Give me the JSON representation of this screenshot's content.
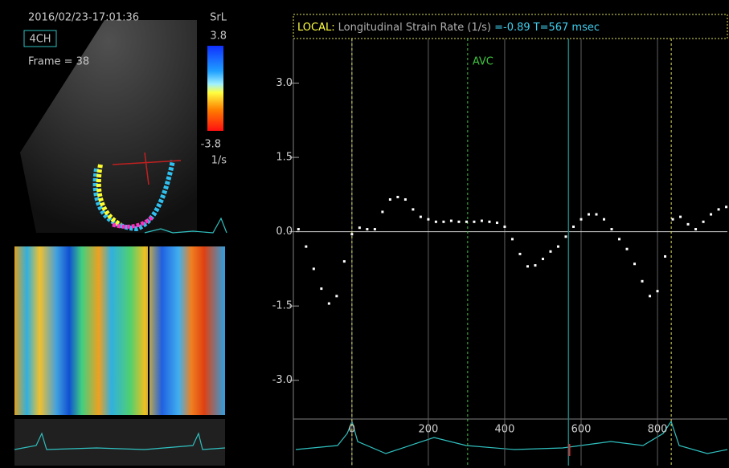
{
  "header": {
    "timestamp": "2016/02/23-17:01:36",
    "view": "4CH",
    "frame": "Frame = 38"
  },
  "colorbar": {
    "title": "SrL",
    "max": 3.8,
    "min": -3.8,
    "unit": "1/s"
  },
  "chart_data": {
    "type": "scatter",
    "local_label": "LOCAL:",
    "title": "Longitudinal Strain Rate (1/s) ",
    "cursor": {
      "value": -0.89,
      "label": "=-0.89"
    },
    "cursor_time": {
      "value": 567,
      "label": "T=567 msec"
    },
    "xlim": [
      -147,
      983
    ],
    "ylim": [
      -3.75,
      3.9
    ],
    "xticks": [
      0,
      200,
      400,
      600,
      800
    ],
    "yticks": [
      {
        "value": 3,
        "label": "3.0"
      },
      {
        "value": 1.5,
        "label": "1.5"
      },
      {
        "value": 0,
        "label": "0.0"
      },
      {
        "value": -1.5,
        "label": "-1.5"
      },
      {
        "value": -3,
        "label": "-3.0"
      }
    ],
    "event_lines": [
      0,
      836
    ],
    "events": [
      {
        "label": "AVC",
        "x": 303,
        "color": "#3ec43e"
      }
    ],
    "series": [
      {
        "color": "#ffffff",
        "x": [
          -140,
          -120,
          -100,
          -80,
          -60,
          -40,
          -20,
          0,
          20,
          40,
          60,
          80,
          100,
          120,
          140,
          160,
          180,
          200,
          220,
          240,
          260,
          280,
          300,
          320,
          340,
          360,
          380,
          400,
          420,
          440,
          460,
          480,
          500,
          520,
          540,
          560,
          580,
          600,
          620,
          640,
          660,
          680,
          700,
          720,
          740,
          760,
          780,
          800,
          820,
          840,
          860,
          880,
          900,
          920,
          940,
          960,
          980
        ],
        "values": [
          0.05,
          -0.3,
          -0.75,
          -1.15,
          -1.45,
          -1.3,
          -0.6,
          -0.05,
          0.08,
          0.05,
          0.05,
          0.4,
          0.65,
          0.7,
          0.65,
          0.45,
          0.3,
          0.25,
          0.2,
          0.2,
          0.22,
          0.2,
          0.2,
          0.2,
          0.22,
          0.2,
          0.18,
          0.1,
          -0.15,
          -0.45,
          -0.7,
          -0.68,
          -0.55,
          -0.4,
          -0.3,
          -0.1,
          0.1,
          0.25,
          0.35,
          0.35,
          0.25,
          0.05,
          -0.15,
          -0.35,
          -0.65,
          -1.0,
          -1.3,
          -1.2,
          -0.5,
          0.25,
          0.3,
          0.15,
          0.05,
          0.2,
          0.35,
          0.45,
          0.5
        ]
      }
    ]
  }
}
